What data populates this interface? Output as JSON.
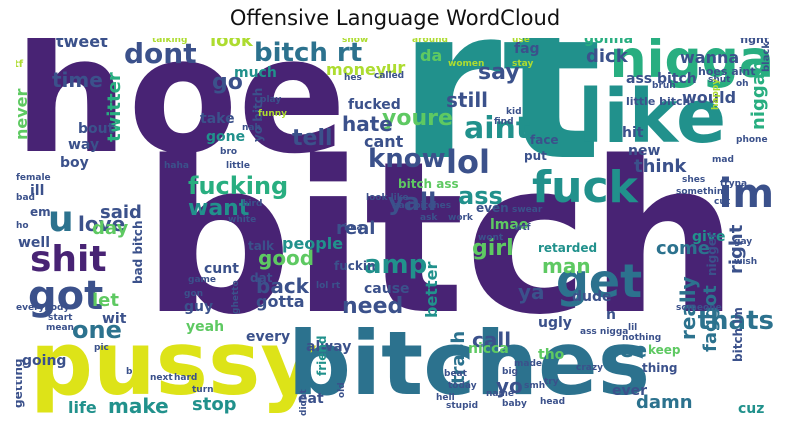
{
  "title": "Offensive Language WordCloud",
  "colors": {
    "purple": "#482374",
    "indigo": "#3b518b",
    "blue": "#2c728e",
    "teal": "#21918c",
    "green": "#28ae80",
    "lime": "#5ec962",
    "yellow": "#dde318",
    "yellowgreen": "#addc30"
  },
  "words": {
    "hoe": "hoe",
    "rt": "rt",
    "bitch": "bitch",
    "pussy": "pussy",
    "bitches": "bitches",
    "nigga": "nigga",
    "like": "like",
    "fuck": "fuck",
    "get": "get",
    "im": "im",
    "got": "got",
    "shit": "shit",
    "lol": "lol",
    "aint": "aint",
    "dont": "dont",
    "bitch_rt": "bitch rt",
    "u": "u",
    "know": "know",
    "amp": "amp",
    "fucking": "fucking",
    "thats": "thats",
    "one": "one",
    "yall": "yall",
    "ass": "ass",
    "love": "love",
    "girl": "girl",
    "say": "say",
    "youre": "youre",
    "go": "go",
    "time": "time",
    "tell": "tell",
    "hate": "hate",
    "want": "want",
    "still": "still",
    "need": "need",
    "make": "make",
    "see": "see",
    "back": "back",
    "good": "good",
    "man": "man",
    "yo": "yo",
    "really": "really",
    "faggot": "faggot",
    "right": "right",
    "niggah": "niggah",
    "think": "think",
    "would": "would",
    "cant": "cant",
    "dick": "dick",
    "call": "call",
    "ya": "ya",
    "trash": "trash",
    "look": "look",
    "money": "money",
    "ur": "ur",
    "let": "let",
    "day": "day",
    "said": "said",
    "twitter": "twitter",
    "never": "never",
    "people": "people",
    "real": "real",
    "cause": "cause",
    "better": "better",
    "come": "come",
    "gotta": "gotta",
    "alway": "alway",
    "nicca": "nicca",
    "stop": "stop",
    "life": "life",
    "damn": "damn",
    "ever": "ever",
    "cuz": "cuz",
    "hit": "hit",
    "new": "new",
    "give": "give",
    "fucked": "fucked",
    "fag": "fag",
    "gonna": "gonna",
    "wanna": "wanna",
    "ass_bitch": "ass bitch",
    "tweet": "tweet",
    "da": "da",
    "much": "much",
    "take": "take",
    "gone": "gone",
    "yo_bitch": "yo bitch",
    "way": "way",
    "bout": "bout",
    "boy": "boy",
    "ill": "ill",
    "em": "em",
    "well": "well",
    "going": "going",
    "getting": "getting",
    "wit": "wit",
    "guy": "guy",
    "yeah": "yeah",
    "cunt": "cunt",
    "every": "every",
    "talk": "talk",
    "dat": "dat",
    "bitch_ass": "bitch ass",
    "lmao": "lmao",
    "even": "even",
    "retarded": "retarded",
    "dude": "dude",
    "ugly": "ugly",
    "n": "n",
    "tho": "tho",
    "keep": "keep",
    "thing": "thing",
    "nigger": "nigger",
    "bitch_im": "bitch im",
    "eat": "eat",
    "friend": "friend",
    "put": "put",
    "face": "face",
    "fuckin": "fuckin",
    "bad_bitch": "bad bitch",
    "little_bitch": "little bitch",
    "hoes_aint": "hoes aint",
    "talking": "talking",
    "show": "show",
    "around": "around",
    "use": "use",
    "fight": "fight",
    "black": "black",
    "tf": "tf",
    "women": "women",
    "stay": "stay",
    "shut": "shut",
    "called": "called",
    "hes": "hes",
    "bruh": "bruh",
    "kid": "kid",
    "find": "find",
    "happy": "happy",
    "oh": "oh",
    "play": "play",
    "funny": "funny",
    "nah": "nah",
    "bro": "bro",
    "little": "little",
    "haha": "haha",
    "female": "female",
    "bird": "bird",
    "white": "white",
    "ho": "ho",
    "bad": "bad",
    "everybody": "everybody",
    "start": "start",
    "mean": "mean",
    "pic": "pic",
    "next": "next",
    "b": "b",
    "game": "game",
    "gon": "gon",
    "ghetto": "ghetto",
    "lol_rt": "lol rt",
    "ima": "ima",
    "look_like": "look like",
    "bad_bitches": "bad bitches",
    "swear": "swear",
    "work": "work",
    "wtf": "wtf",
    "wont": "wont",
    "ask": "ask",
    "something": "something",
    "shes": "shes",
    "tryna": "tryna",
    "phone": "phone",
    "gay": "gay",
    "wish": "wish",
    "cut": "cut",
    "made": "made",
    "big": "big",
    "smh": "smh",
    "name": "name",
    "someone": "someone",
    "nothing": "nothing",
    "lil": "lil",
    "ass_nigga": "ass nigga",
    "hell": "hell",
    "old": "old",
    "didnt": "didnt",
    "hard": "hard",
    "turn": "turn",
    "beat": "beat",
    "today": "today",
    "stupid": "stupid",
    "baby": "baby",
    "head": "head",
    "try": "try",
    "crazy": "crazy",
    "mad": "mad"
  }
}
